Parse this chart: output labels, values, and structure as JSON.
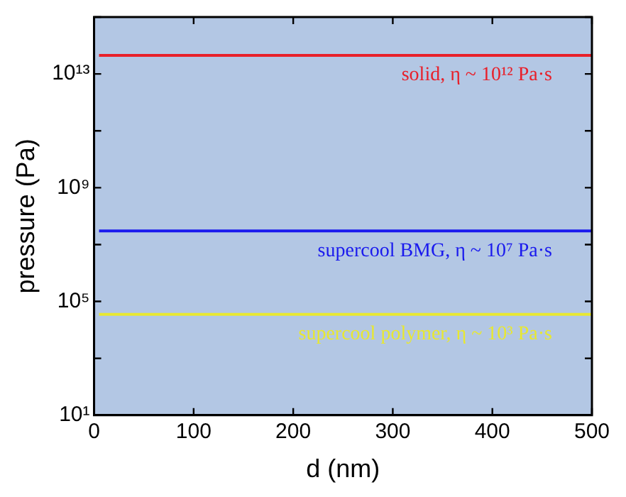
{
  "chart_data": {
    "type": "line",
    "xlabel": "d (nm)",
    "ylabel": "pressure (Pa)",
    "xlim": [
      0,
      500
    ],
    "xticks": [
      0,
      100,
      200,
      300,
      400,
      500
    ],
    "ylim": [
      10,
      1000000000000000.0
    ],
    "log": "y",
    "yticks": [
      {
        "value": 10,
        "label": "10¹"
      },
      {
        "value": 1000,
        "label": null
      },
      {
        "value": 100000,
        "label": "10⁵"
      },
      {
        "value": 10000000,
        "label": null
      },
      {
        "value": 1000000000,
        "label": "10⁹"
      },
      {
        "value": 100000000000,
        "label": null
      },
      {
        "value": 10000000000000,
        "label": "10¹³"
      },
      {
        "value": 1000000000000000.0,
        "label": null
      }
    ],
    "x": [
      5,
      500
    ],
    "series": [
      {
        "color": "#e8202a",
        "values": [
          45000000000000.0,
          45000000000000.0
        ]
      },
      {
        "color": "#1a1aee",
        "values": [
          30000000.0,
          30000000.0
        ]
      },
      {
        "color": "#e8e830",
        "values": [
          35000.0,
          35000.0
        ]
      }
    ],
    "annotations": [
      "solid, η ~ 10¹² Pa·s",
      "supercool BMG, η ~ 10⁷ Pa·s",
      "supercool polymer, η ~ 10³ Pa·s"
    ],
    "grid": false,
    "marker": "none",
    "line_style": "solid",
    "legend": false
  }
}
